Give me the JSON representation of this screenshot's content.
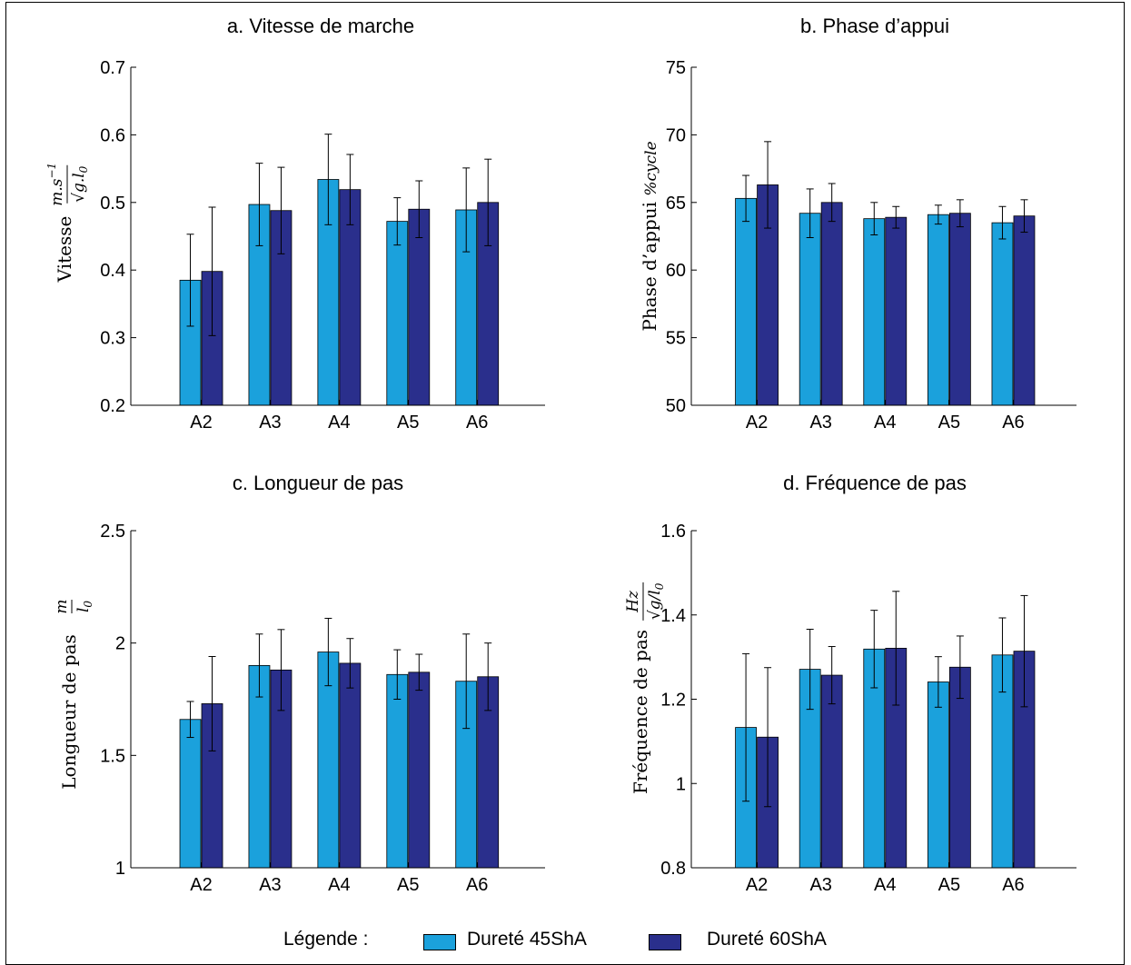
{
  "colors": {
    "series1": "#1ba1dc",
    "series2": "#2a2f8c",
    "axis": "#000000"
  },
  "legend": {
    "title": "Légende :",
    "items": [
      "Dureté 45ShA",
      "Dureté 60ShA"
    ]
  },
  "chart_data": [
    {
      "type": "bar",
      "title": "a.  Vitesse de marche",
      "ylabel": "Vitesse",
      "ylabel_unit_num": "m.s",
      "ylabel_unit_sup": "−1",
      "ylabel_unit_den": "√g.l",
      "ylabel_unit_den_sub": "0",
      "categories": [
        "A2",
        "A3",
        "A4",
        "A5",
        "A6"
      ],
      "ylim": [
        0.2,
        0.7
      ],
      "yticks": [
        "0.2",
        "0.3",
        "0.4",
        "0.5",
        "0.6",
        "0.7"
      ],
      "series": [
        {
          "name": "Dureté 45ShA",
          "values": [
            0.385,
            0.497,
            0.534,
            0.472,
            0.489
          ],
          "err": [
            0.068,
            0.061,
            0.067,
            0.035,
            0.062
          ]
        },
        {
          "name": "Dureté 60ShA",
          "values": [
            0.398,
            0.488,
            0.519,
            0.49,
            0.5
          ],
          "err": [
            0.095,
            0.064,
            0.052,
            0.042,
            0.064
          ]
        }
      ]
    },
    {
      "type": "bar",
      "title": "b.  Phase d’appui",
      "ylabel": "Phase d’appui",
      "ylabel_unit_num": "%cycle",
      "categories": [
        "A2",
        "A3",
        "A4",
        "A5",
        "A6"
      ],
      "ylim": [
        50,
        75
      ],
      "yticks": [
        "50",
        "55",
        "60",
        "65",
        "70",
        "75"
      ],
      "series": [
        {
          "name": "Dureté 45ShA",
          "values": [
            65.3,
            64.2,
            63.8,
            64.1,
            63.5
          ],
          "err": [
            1.7,
            1.8,
            1.2,
            0.7,
            1.2
          ]
        },
        {
          "name": "Dureté 60ShA",
          "values": [
            66.3,
            65.0,
            63.9,
            64.2,
            64.0
          ],
          "err": [
            3.2,
            1.4,
            0.8,
            1.0,
            1.2
          ]
        }
      ]
    },
    {
      "type": "bar",
      "title": "c.  Longueur de pas",
      "ylabel": "Longueur de pas",
      "ylabel_unit_num": "m",
      "ylabel_unit_den": "l",
      "ylabel_unit_den_sub": "0",
      "categories": [
        "A2",
        "A3",
        "A4",
        "A5",
        "A6"
      ],
      "ylim": [
        1,
        2.5
      ],
      "yticks": [
        "1",
        "1.5",
        "2",
        "2.5"
      ],
      "series": [
        {
          "name": "Dureté 45ShA",
          "values": [
            1.66,
            1.9,
            1.96,
            1.86,
            1.83
          ],
          "err": [
            0.08,
            0.14,
            0.15,
            0.11,
            0.21
          ]
        },
        {
          "name": "Dureté 60ShA",
          "values": [
            1.73,
            1.88,
            1.91,
            1.87,
            1.85
          ],
          "err": [
            0.21,
            0.18,
            0.11,
            0.08,
            0.15
          ]
        }
      ]
    },
    {
      "type": "bar",
      "title": "d.  Fréquence de pas",
      "ylabel": "Fréquence de pas",
      "ylabel_unit_num": "Hz",
      "ylabel_unit_den": "√g/l",
      "ylabel_unit_den_sub": "0",
      "categories": [
        "A2",
        "A3",
        "A4",
        "A5",
        "A6"
      ],
      "ylim": [
        0.8,
        1.6
      ],
      "yticks": [
        "0.8",
        "1",
        "1.2",
        "1.4",
        "1.6"
      ],
      "series": [
        {
          "name": "Dureté 45ShA",
          "values": [
            1.133,
            1.271,
            1.319,
            1.241,
            1.305
          ],
          "err": [
            0.175,
            0.095,
            0.092,
            0.06,
            0.088
          ]
        },
        {
          "name": "Dureté 60ShA",
          "values": [
            1.11,
            1.257,
            1.321,
            1.276,
            1.314
          ],
          "err": [
            0.165,
            0.068,
            0.135,
            0.074,
            0.132
          ]
        }
      ]
    }
  ]
}
